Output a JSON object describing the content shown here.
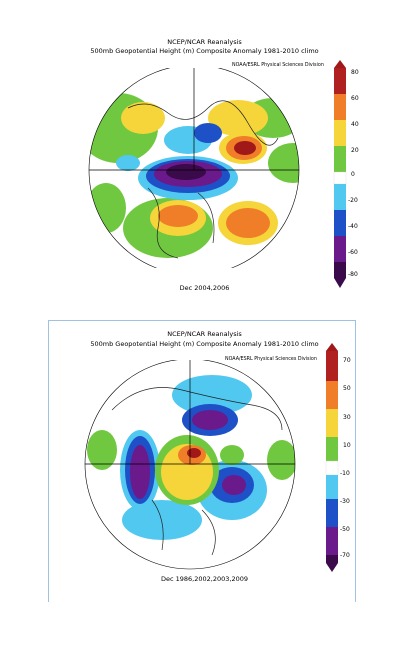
{
  "panels": [
    {
      "title_line1": "NCEP/NCAR Reanalysis",
      "title_line2": "500mb Geopotential Height (m) Composite Anomaly 1981-2010 climo",
      "credit": "NOAA/ESRL Physical Sciences Division",
      "caption": "Dec 2004,2006",
      "colorbar_ticks": [
        "80",
        "60",
        "40",
        "20",
        "0",
        "-20",
        "-40",
        "-60",
        "-80"
      ],
      "colors": {
        "strong_positive": "#a01818",
        "positive": "#f07d28",
        "weak_positive": "#f5d53a",
        "slight_positive": "#70c840",
        "neutral": "#ffffff",
        "slight_negative": "#50c8f0",
        "negative": "#1e50c8",
        "strong_negative": "#6a1a8a"
      }
    },
    {
      "title_line1": "NCEP/NCAR Reanalysis",
      "title_line2": "500mb Geopotential Height (m) Composite Anomaly 1981-2010 climo",
      "credit": "NOAA/ESRL Physical Sciences Division",
      "caption": "Dec 1986,2002,2003,2009",
      "colorbar_ticks": [
        "70",
        "50",
        "30",
        "10",
        "-10",
        "-30",
        "-50",
        "-70"
      ],
      "colors": {
        "strong_positive": "#a01818",
        "positive": "#f07d28",
        "weak_positive": "#f5d53a",
        "slight_positive": "#70c840",
        "neutral": "#ffffff",
        "slight_negative": "#50c8f0",
        "negative": "#1e50c8",
        "strong_negative": "#6a1a8a"
      }
    }
  ]
}
